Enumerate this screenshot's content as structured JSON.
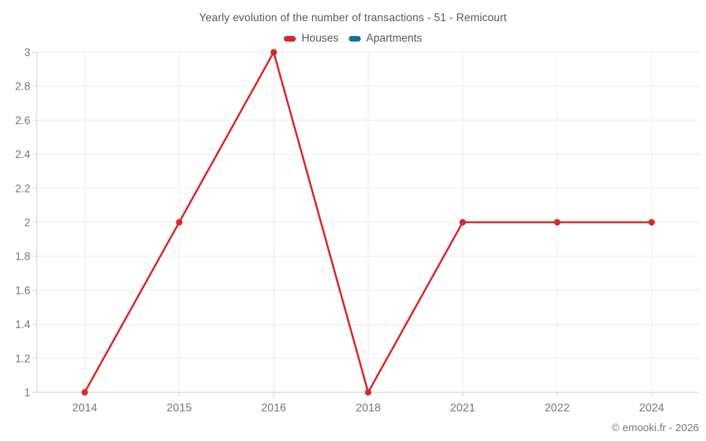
{
  "chart_data": {
    "type": "line",
    "title": "Yearly evolution of the number of transactions - 51 - Remicourt",
    "categories": [
      "2014",
      "2015",
      "2016",
      "2018",
      "2021",
      "2022",
      "2024"
    ],
    "series": [
      {
        "name": "Houses",
        "color": "#d7282c",
        "values": [
          1,
          2,
          3,
          1,
          2,
          2,
          2
        ]
      },
      {
        "name": "Apartments",
        "color": "#17709f",
        "values": []
      }
    ],
    "xlabel": "",
    "ylabel": "",
    "ylim": [
      1,
      3
    ],
    "ytick_step": 0.2,
    "ytick_labels": [
      "1",
      "1.2",
      "1.4",
      "1.6",
      "1.8",
      "2",
      "2.2",
      "2.4",
      "2.6",
      "2.8",
      "3"
    ],
    "grid": true,
    "legend_position": "top",
    "colors": {
      "grid": "#ededed",
      "axis": "#d6d6d6",
      "tick_label": "#757575"
    }
  },
  "footer": {
    "copyright": "© emooki.fr - 2026"
  }
}
